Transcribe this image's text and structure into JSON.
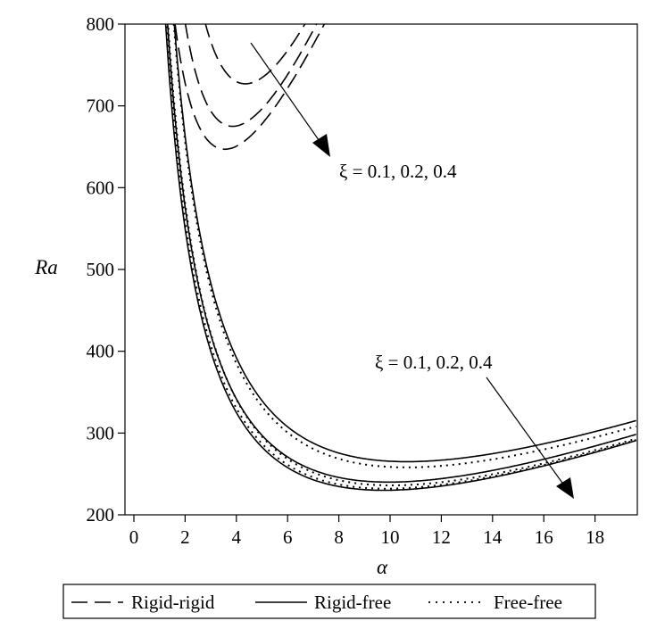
{
  "chart_data": {
    "type": "line",
    "xlabel": "α",
    "ylabel": "Ra",
    "xlim": [
      0,
      20
    ],
    "ylim": [
      200,
      800
    ],
    "xticks": [
      0,
      2,
      4,
      6,
      8,
      10,
      12,
      14,
      16,
      18
    ],
    "yticks": [
      200,
      300,
      400,
      500,
      600,
      700,
      800
    ],
    "grid": false,
    "legend_position": "bottom",
    "legend": [
      {
        "label": "Rigid-rigid",
        "style": "dashed"
      },
      {
        "label": "Rigid-free",
        "style": "solid"
      },
      {
        "label": "Free-free",
        "style": "dotted"
      }
    ],
    "annotations": [
      {
        "text": "ξ = 0.1, 0.2, 0.4",
        "near": "rigid-rigid minima"
      },
      {
        "text": "ξ = 0.1, 0.2, 0.4",
        "near": "lower curves"
      }
    ],
    "series": [
      {
        "style": "dashed",
        "min_x": 4.7,
        "min_y": 727
      },
      {
        "style": "dashed",
        "min_x": 4.2,
        "min_y": 675
      },
      {
        "style": "dashed",
        "min_x": 3.9,
        "min_y": 647
      },
      {
        "style": "solid",
        "min_x": 11.0,
        "min_y": 265
      },
      {
        "style": "solid",
        "min_x": 10.3,
        "min_y": 240
      },
      {
        "style": "solid",
        "min_x": 10.1,
        "min_y": 230
      },
      {
        "style": "dotted",
        "min_x": 11.0,
        "min_y": 258
      },
      {
        "style": "dotted",
        "min_x": 10.4,
        "min_y": 236
      },
      {
        "style": "dotted",
        "min_x": 10.2,
        "min_y": 232
      }
    ]
  }
}
